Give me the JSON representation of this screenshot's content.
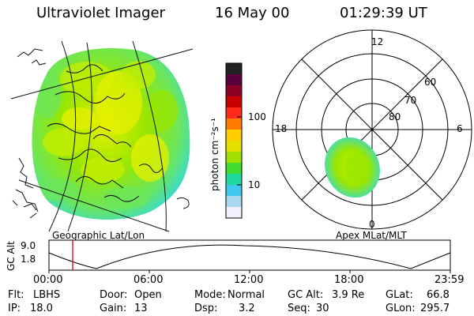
{
  "header": {
    "instrument": "Ultraviolet Imager",
    "date": "16 May 00",
    "time": "01:29:39 UT"
  },
  "colorbar": {
    "unit_label": "photon cm⁻²s⁻¹",
    "tick_labels": [
      "100",
      "10"
    ],
    "colors": [
      "#222222",
      "#5a0040",
      "#8c0028",
      "#c80000",
      "#ff2a1a",
      "#ff7a00",
      "#ffcc00",
      "#e6e000",
      "#a0e000",
      "#40dd30",
      "#20d8a0",
      "#40c8f0",
      "#aad8f0",
      "#f0f0ff"
    ]
  },
  "geo_panel": {
    "label": "Geographic Lat/Lon",
    "fill_colors": [
      "#9ae600",
      "#c4ee00",
      "#e6f000",
      "#6ce65a",
      "#3cdcc8"
    ]
  },
  "polar_panel": {
    "label": "Apex MLat/MLT",
    "mlt_labels": {
      "top": "12",
      "left": "18",
      "right": "6",
      "bottom": "0"
    },
    "mlat_labels": [
      "60",
      "70",
      "80"
    ]
  },
  "orbit_plot": {
    "ylabel": "GC Alt",
    "y_ticks": [
      "9.0",
      "1.8"
    ],
    "x_ticks": [
      "00:00",
      "06:00",
      "12:00",
      "18:00",
      "23:59"
    ],
    "current_time_marker": "01:29:39",
    "marker_color": "#dd2222"
  },
  "status": [
    [
      "Flt:",
      "LBHS"
    ],
    [
      "Door:",
      "Open"
    ],
    [
      "Mode:",
      "Normal"
    ],
    [
      "GC Alt:",
      "3.9 Re"
    ],
    [
      "GLat:",
      "66.8"
    ],
    [
      "IP:",
      "18.0"
    ],
    [
      "Gain:",
      "13"
    ],
    [
      "Dsp:",
      "3.2"
    ],
    [
      "Seq:",
      "30"
    ],
    [
      "GLon:",
      "295.7"
    ]
  ]
}
